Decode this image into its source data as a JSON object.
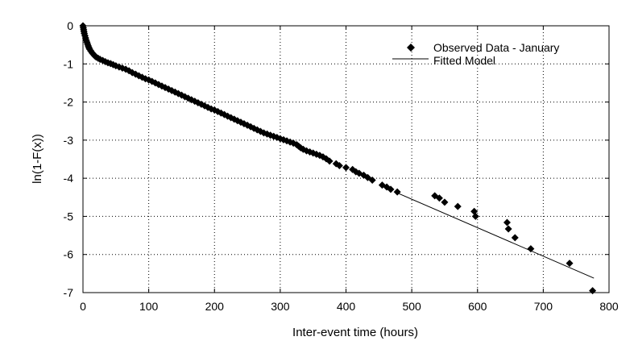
{
  "chart_data": {
    "type": "scatter",
    "title": "",
    "xlabel": "Inter-event time (hours)",
    "ylabel": "ln(1-F(x))",
    "xlim": [
      0,
      800
    ],
    "ylim": [
      -7,
      0
    ],
    "x_ticks": [
      0,
      100,
      200,
      300,
      400,
      500,
      600,
      700,
      800
    ],
    "y_ticks": [
      0,
      -1,
      -2,
      -3,
      -4,
      -5,
      -6,
      -7
    ],
    "x_tick_labels": [
      "0",
      "100",
      "200",
      "300",
      "400",
      "500",
      "600",
      "700",
      "800"
    ],
    "y_tick_labels": [
      "0",
      "-1",
      "-2",
      "-3",
      "-4",
      "-5",
      "-6",
      "-7"
    ],
    "grid": true,
    "legend": {
      "placement": "top-right",
      "entries": [
        "Observed Data - January",
        "Fitted Model"
      ]
    },
    "series": [
      {
        "name": "Observed Data - January",
        "kind": "scatter",
        "marker": "diamond",
        "color": "#000000",
        "points": [
          [
            0,
            0.0
          ],
          [
            0.5,
            -0.05
          ],
          [
            1,
            -0.1
          ],
          [
            1.5,
            -0.15
          ],
          [
            2,
            -0.2
          ],
          [
            3,
            -0.26
          ],
          [
            4,
            -0.32
          ],
          [
            5,
            -0.38
          ],
          [
            6,
            -0.43
          ],
          [
            7,
            -0.48
          ],
          [
            8,
            -0.53
          ],
          [
            9,
            -0.57
          ],
          [
            10,
            -0.61
          ],
          [
            12,
            -0.66
          ],
          [
            14,
            -0.71
          ],
          [
            16,
            -0.75
          ],
          [
            18,
            -0.79
          ],
          [
            20,
            -0.82
          ],
          [
            23,
            -0.85
          ],
          [
            26,
            -0.88
          ],
          [
            30,
            -0.91
          ],
          [
            34,
            -0.94
          ],
          [
            38,
            -0.97
          ],
          [
            42,
            -0.99
          ],
          [
            46,
            -1.02
          ],
          [
            50,
            -1.05
          ],
          [
            55,
            -1.08
          ],
          [
            60,
            -1.11
          ],
          [
            65,
            -1.14
          ],
          [
            70,
            -1.18
          ],
          [
            75,
            -1.23
          ],
          [
            80,
            -1.27
          ],
          [
            85,
            -1.31
          ],
          [
            90,
            -1.35
          ],
          [
            95,
            -1.39
          ],
          [
            100,
            -1.42
          ],
          [
            105,
            -1.46
          ],
          [
            110,
            -1.5
          ],
          [
            115,
            -1.54
          ],
          [
            120,
            -1.58
          ],
          [
            125,
            -1.62
          ],
          [
            130,
            -1.66
          ],
          [
            135,
            -1.7
          ],
          [
            140,
            -1.74
          ],
          [
            145,
            -1.78
          ],
          [
            150,
            -1.82
          ],
          [
            155,
            -1.86
          ],
          [
            160,
            -1.9
          ],
          [
            165,
            -1.94
          ],
          [
            170,
            -1.98
          ],
          [
            175,
            -2.02
          ],
          [
            180,
            -2.06
          ],
          [
            185,
            -2.1
          ],
          [
            190,
            -2.14
          ],
          [
            195,
            -2.18
          ],
          [
            200,
            -2.21
          ],
          [
            205,
            -2.25
          ],
          [
            210,
            -2.29
          ],
          [
            215,
            -2.33
          ],
          [
            220,
            -2.37
          ],
          [
            225,
            -2.41
          ],
          [
            230,
            -2.45
          ],
          [
            235,
            -2.49
          ],
          [
            240,
            -2.53
          ],
          [
            245,
            -2.57
          ],
          [
            250,
            -2.61
          ],
          [
            255,
            -2.65
          ],
          [
            260,
            -2.69
          ],
          [
            265,
            -2.73
          ],
          [
            270,
            -2.77
          ],
          [
            275,
            -2.81
          ],
          [
            280,
            -2.84
          ],
          [
            285,
            -2.87
          ],
          [
            290,
            -2.9
          ],
          [
            295,
            -2.93
          ],
          [
            300,
            -2.96
          ],
          [
            305,
            -2.99
          ],
          [
            310,
            -3.02
          ],
          [
            315,
            -3.05
          ],
          [
            320,
            -3.08
          ],
          [
            325,
            -3.12
          ],
          [
            328,
            -3.16
          ],
          [
            331,
            -3.2
          ],
          [
            335,
            -3.24
          ],
          [
            340,
            -3.28
          ],
          [
            345,
            -3.31
          ],
          [
            350,
            -3.34
          ],
          [
            355,
            -3.37
          ],
          [
            360,
            -3.4
          ],
          [
            365,
            -3.44
          ],
          [
            370,
            -3.49
          ],
          [
            375,
            -3.55
          ],
          [
            385,
            -3.62
          ],
          [
            390,
            -3.67
          ],
          [
            400,
            -3.72
          ],
          [
            410,
            -3.77
          ],
          [
            415,
            -3.83
          ],
          [
            420,
            -3.87
          ],
          [
            427,
            -3.92
          ],
          [
            433,
            -3.98
          ],
          [
            440,
            -4.05
          ],
          [
            455,
            -4.18
          ],
          [
            462,
            -4.23
          ],
          [
            468,
            -4.29
          ],
          [
            478,
            -4.36
          ],
          [
            535,
            -4.46
          ],
          [
            542,
            -4.52
          ],
          [
            550,
            -4.63
          ],
          [
            570,
            -4.74
          ],
          [
            595,
            -4.87
          ],
          [
            597,
            -5.0
          ],
          [
            645,
            -5.16
          ],
          [
            647,
            -5.33
          ],
          [
            657,
            -5.56
          ],
          [
            681,
            -5.85
          ],
          [
            740,
            -6.23
          ],
          [
            775,
            -6.95
          ]
        ]
      },
      {
        "name": "Fitted Model",
        "kind": "line",
        "color": "#000000",
        "points": [
          [
            480,
            -4.4
          ],
          [
            777,
            -6.62
          ]
        ]
      }
    ]
  }
}
